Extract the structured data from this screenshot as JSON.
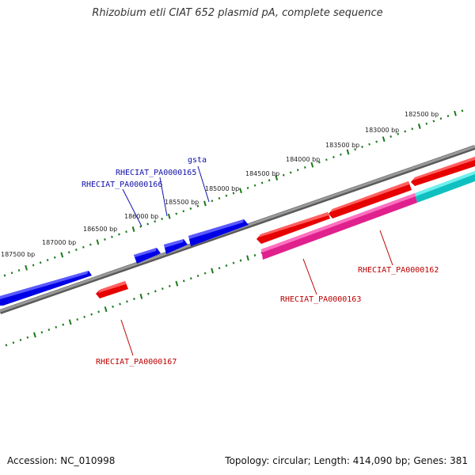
{
  "title": "Rhizobium etli CIAT 652 plasmid pA, complete sequence",
  "footer": {
    "accession": "Accession: NC_010998",
    "summary": "Topology: circular; Length: 414,090 bp; Genes: 381"
  },
  "scale_labels": [
    "182500 bp",
    "183000 bp",
    "183500 bp",
    "184000 bp",
    "184500 bp",
    "185000 bp",
    "185500 bp",
    "186000 bp",
    "186500 bp",
    "187000 bp",
    "187500 bp"
  ],
  "colors": {
    "backbone": "#808080",
    "ticks": "#1a7a1a",
    "forward_gene": "#0000ee",
    "reverse_gene": "#ee0000",
    "rrna_magenta": "#e0208c",
    "cyan_gene": "#10c0c0",
    "label_forward": "#1010aa",
    "label_reverse": "#bb0000"
  },
  "gene_labels": [
    {
      "text": "gsta",
      "strand": "forward"
    },
    {
      "text": "RHECIAT_PA0000165",
      "strand": "forward"
    },
    {
      "text": "RHECIAT_PA0000166",
      "strand": "forward"
    },
    {
      "text": "RHECIAT_PA0000162",
      "strand": "reverse"
    },
    {
      "text": "RHECIAT_PA0000163",
      "strand": "reverse"
    },
    {
      "text": "RHECIAT_PA0000167",
      "strand": "reverse"
    }
  ]
}
